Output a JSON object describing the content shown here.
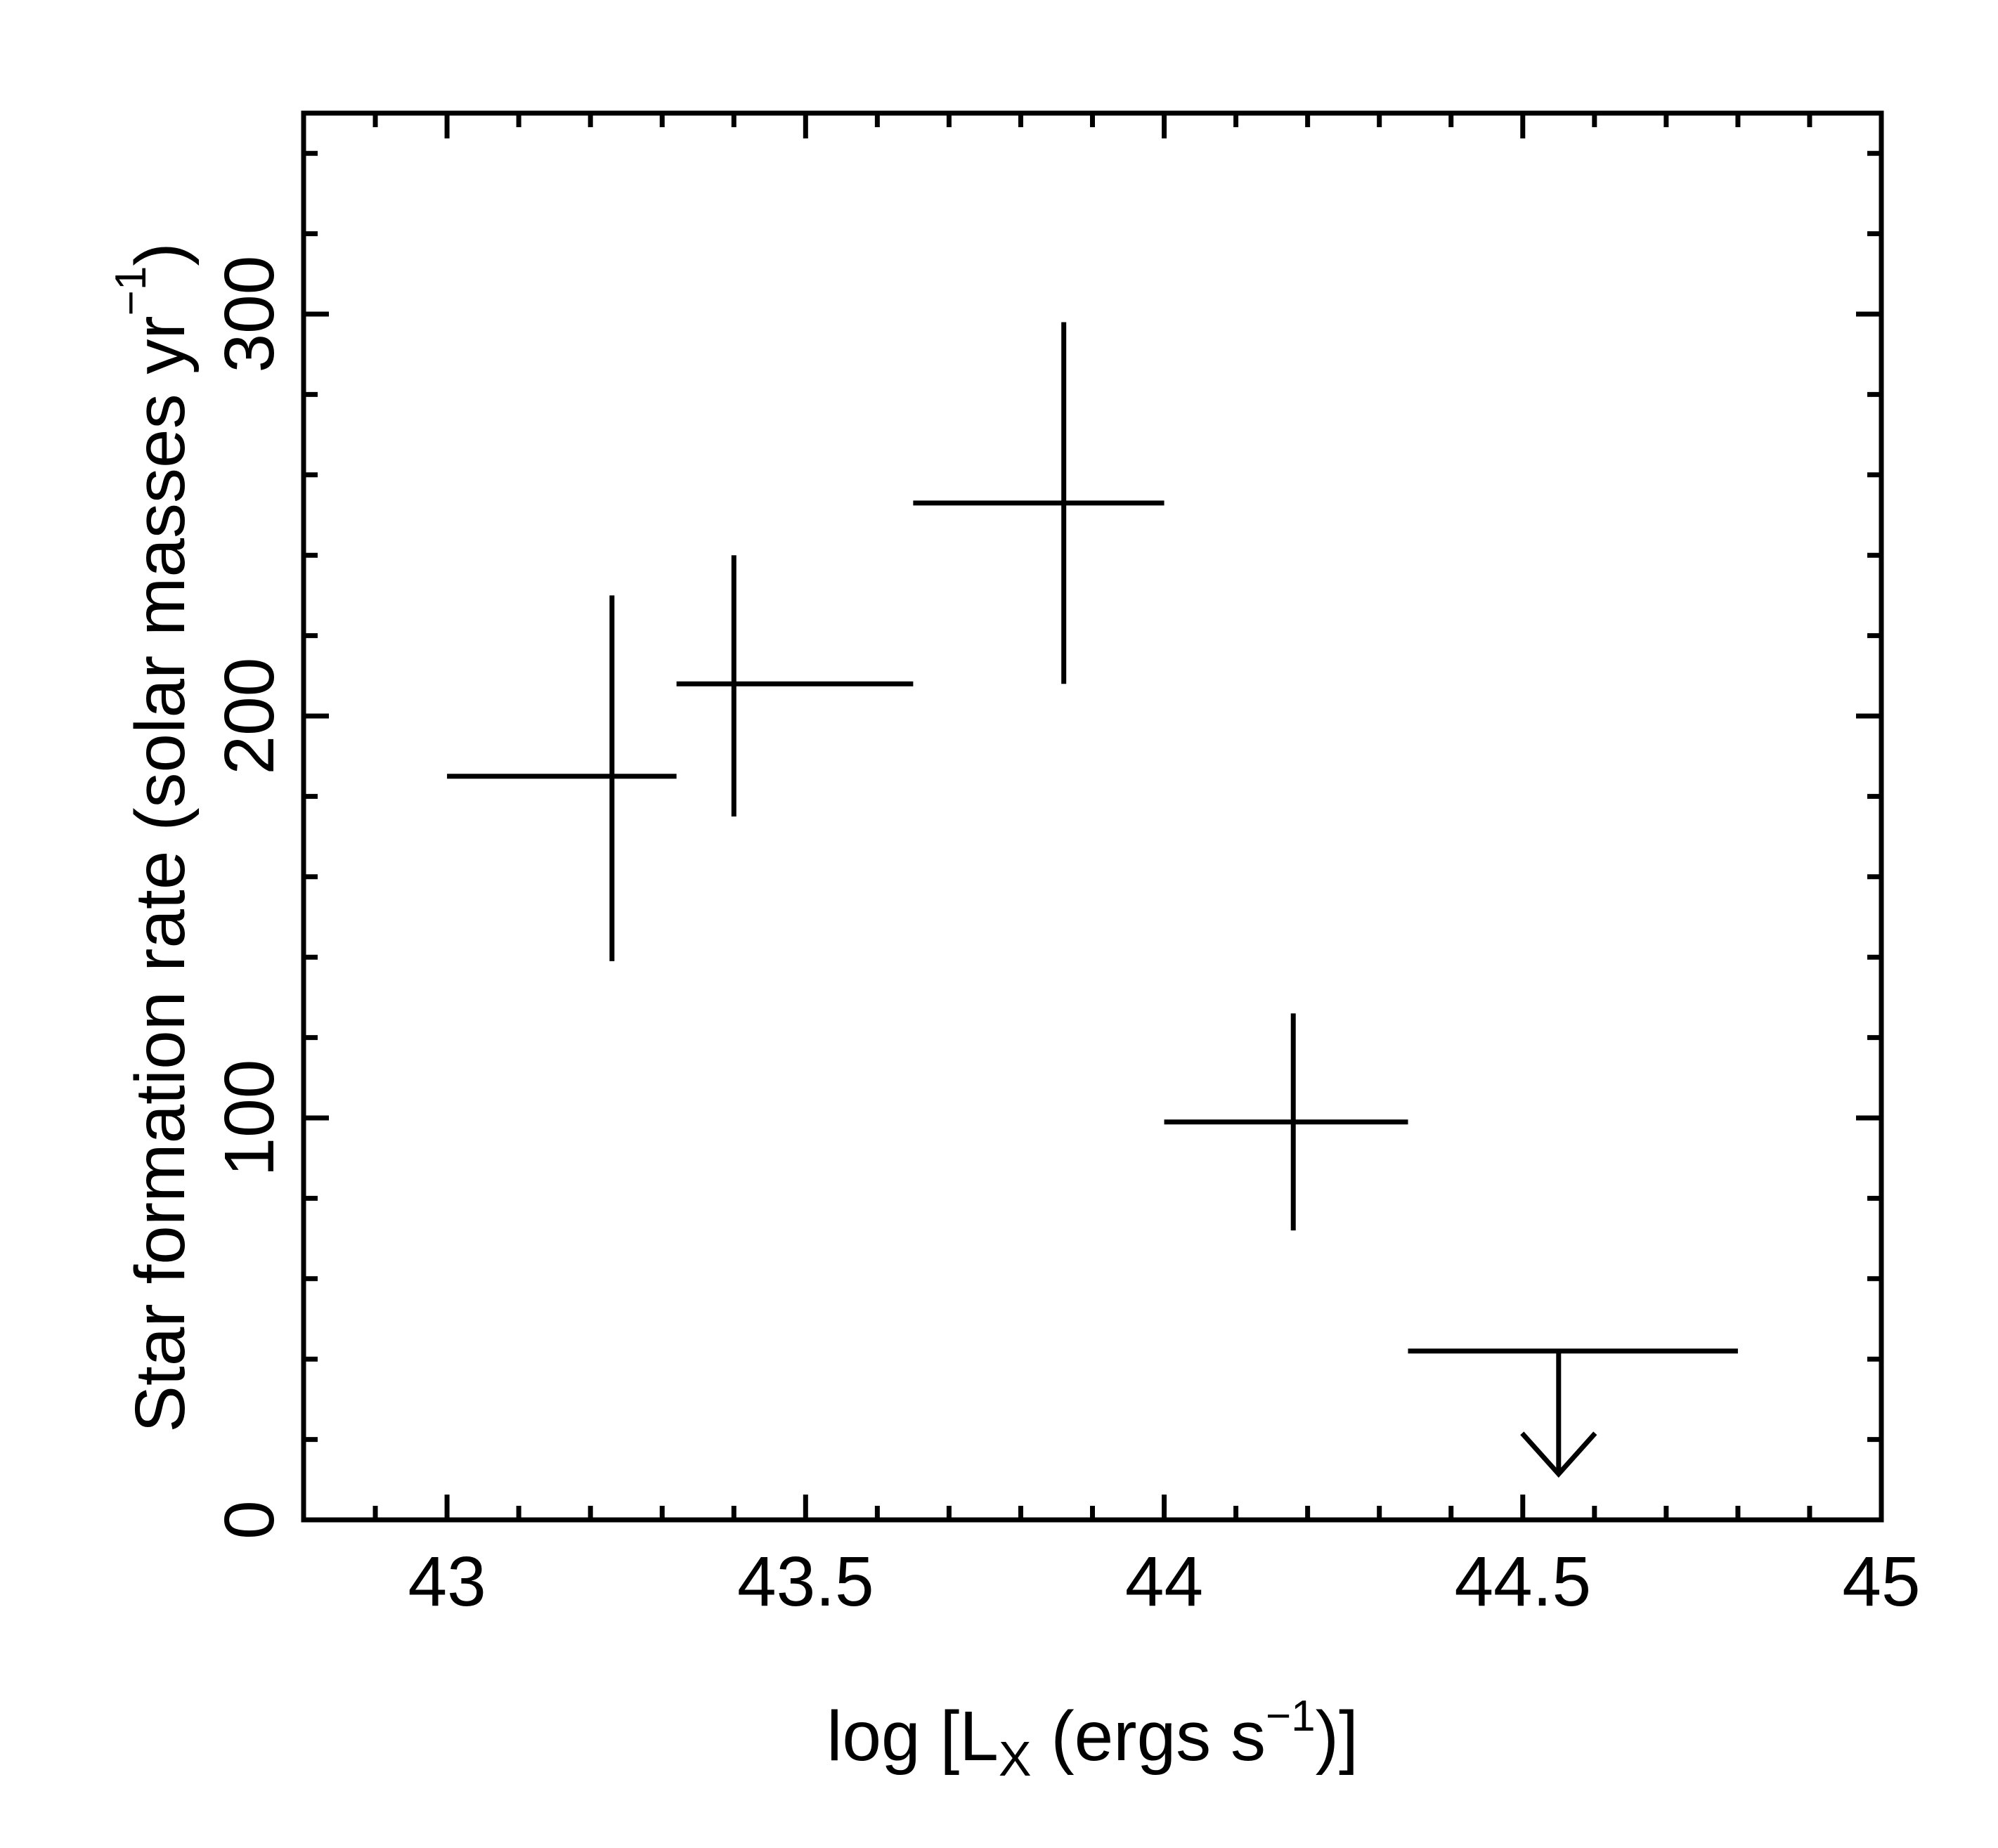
{
  "chart_data": {
    "type": "scatter",
    "title": "",
    "xlabel": {
      "prefix": "log [L",
      "subscript": "X",
      "middle": " (ergs s",
      "superscript": "−1",
      "suffix": ")]"
    },
    "ylabel": {
      "prefix": "Star formation rate (solar masses yr",
      "superscript": "−1",
      "suffix": ")"
    },
    "xlim": [
      42.8,
      45.0
    ],
    "ylim": [
      0,
      350
    ],
    "x_major_ticks": [
      43,
      43.5,
      44,
      44.5,
      45
    ],
    "x_tick_labels": [
      "43",
      "43.5",
      "44",
      "44.5",
      "45"
    ],
    "x_minor_step": 0.1,
    "y_major_ticks": [
      0,
      100,
      200,
      300
    ],
    "y_tick_labels": [
      "0",
      "100",
      "200",
      "300"
    ],
    "y_minor_step": 20,
    "grid": false,
    "legend": "none",
    "colors": {
      "marks": "#000000",
      "background": "#ffffff"
    },
    "points": [
      {
        "x": 43.23,
        "x_low": 43.0,
        "x_high": 43.32,
        "y": 185,
        "y_low": 139,
        "y_high": 230
      },
      {
        "x": 43.4,
        "x_low": 43.32,
        "x_high": 43.65,
        "y": 208,
        "y_low": 175,
        "y_high": 240
      },
      {
        "x": 43.86,
        "x_low": 43.65,
        "x_high": 44.0,
        "y": 253,
        "y_low": 208,
        "y_high": 298
      },
      {
        "x": 44.18,
        "x_low": 44.0,
        "x_high": 44.34,
        "y": 99,
        "y_low": 72,
        "y_high": 126
      }
    ],
    "upper_limits": [
      {
        "x": 44.55,
        "x_low": 44.34,
        "x_high": 44.8,
        "y": 42
      }
    ]
  }
}
